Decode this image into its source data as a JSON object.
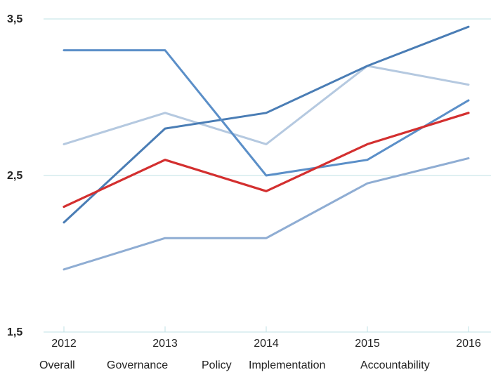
{
  "chart_data": {
    "type": "line",
    "x": [
      "2012",
      "2013",
      "2014",
      "2015",
      "2016"
    ],
    "ylim": [
      1.5,
      3.5
    ],
    "yticks": [
      {
        "value": 1.5,
        "label": "1,5"
      },
      {
        "value": 2.5,
        "label": "2,5"
      },
      {
        "value": 3.5,
        "label": "3,5"
      }
    ],
    "grid": true,
    "legend_position": "bottom",
    "series": [
      {
        "name": "Overall",
        "color": "#d32f2f",
        "values": [
          2.3,
          2.6,
          2.4,
          2.7,
          2.9
        ]
      },
      {
        "name": "Governance",
        "color": "#4a7db5",
        "values": [
          2.2,
          2.8,
          2.9,
          3.2,
          3.45
        ]
      },
      {
        "name": "Policy",
        "color": "#b5c9e0",
        "values": [
          2.7,
          2.9,
          2.7,
          3.2,
          3.08
        ]
      },
      {
        "name": "Implementation",
        "color": "#5b8fc8",
        "values": [
          3.3,
          3.3,
          2.5,
          2.6,
          2.98
        ]
      },
      {
        "name": "Accountability",
        "color": "#8fadd3",
        "values": [
          1.9,
          2.1,
          2.1,
          2.45,
          2.61
        ]
      }
    ]
  }
}
